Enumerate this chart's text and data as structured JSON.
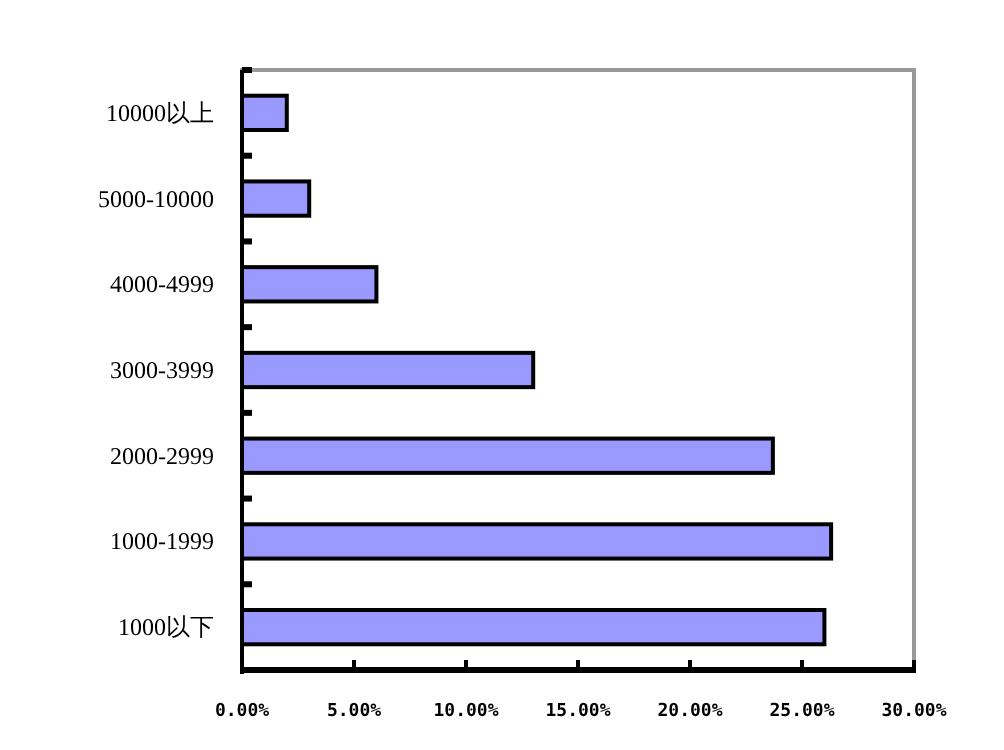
{
  "chart_data": {
    "type": "bar",
    "orientation": "horizontal",
    "categories": [
      "10000以上",
      "5000-10000",
      "4000-4999",
      "3000-3999",
      "2000-2999",
      "1000-1999",
      "1000以下"
    ],
    "values": [
      2.0,
      3.0,
      6.0,
      13.0,
      23.7,
      26.3,
      26.0
    ],
    "color": "#9999ff",
    "xlim": [
      0,
      30
    ],
    "xticks": [
      {
        "value": 0,
        "label": "0.00%"
      },
      {
        "value": 5,
        "label": "5.00%"
      },
      {
        "value": 10,
        "label": "10.00%"
      },
      {
        "value": 15,
        "label": "15.00%"
      },
      {
        "value": 20,
        "label": "20.00%"
      },
      {
        "value": 25,
        "label": "25.00%"
      },
      {
        "value": 30,
        "label": "30.00%"
      }
    ],
    "grid": false
  }
}
